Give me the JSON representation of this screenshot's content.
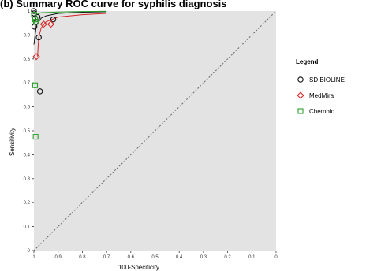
{
  "chart_data": {
    "type": "scatter",
    "title": "(b) Summary ROC curve for syphilis diagnosis",
    "xlabel": "100-Specificity",
    "ylabel": "Sensitivity",
    "x_reversed": true,
    "xlim": [
      1,
      0
    ],
    "ylim": [
      0,
      1
    ],
    "xticks": [
      "1",
      "0.9",
      "0.8",
      "0.7",
      "0.6",
      "0.5",
      "0.4",
      "0.3",
      "0.2",
      "0.1",
      "0"
    ],
    "yticks": [
      "0",
      "0.1",
      "0.2",
      "0.3",
      "0.4",
      "0.5",
      "0.6",
      "0.7",
      "0.8",
      "0.9",
      "1"
    ],
    "grid": false,
    "background": "#e3e3e3",
    "diagonal_reference": true,
    "legend": {
      "title": "Legend",
      "placement": "right",
      "entries": [
        {
          "label": "SD BIOLINE",
          "marker": "circle",
          "color": "#111111"
        },
        {
          "label": "MedMira",
          "marker": "diamond",
          "color": "#d62728"
        },
        {
          "label": "Chembio",
          "marker": "square",
          "color": "#2ca02c"
        }
      ]
    },
    "series": [
      {
        "name": "SD BIOLINE",
        "marker": "circle",
        "color": "#111111",
        "points": [
          {
            "x": 1.0,
            "y": 1.0
          },
          {
            "x": 0.999,
            "y": 0.99
          },
          {
            "x": 0.995,
            "y": 0.97
          },
          {
            "x": 0.998,
            "y": 0.935
          },
          {
            "x": 0.985,
            "y": 0.975
          },
          {
            "x": 0.98,
            "y": 0.89
          },
          {
            "x": 0.92,
            "y": 0.965
          },
          {
            "x": 0.975,
            "y": 0.665
          }
        ],
        "curve": [
          [
            1.0,
            0.86
          ],
          [
            0.99,
            0.94
          ],
          [
            0.97,
            0.97
          ],
          [
            0.95,
            0.98
          ],
          [
            0.9,
            0.99
          ],
          [
            0.8,
            0.995
          ],
          [
            0.7,
            0.997
          ]
        ]
      },
      {
        "name": "MedMira",
        "marker": "diamond",
        "color": "#d62728",
        "points": [
          {
            "x": 0.99,
            "y": 0.81
          },
          {
            "x": 0.96,
            "y": 0.945
          },
          {
            "x": 0.93,
            "y": 0.945
          }
        ],
        "curve": [
          [
            0.985,
            0.81
          ],
          [
            0.98,
            0.89
          ],
          [
            0.97,
            0.93
          ],
          [
            0.95,
            0.955
          ],
          [
            0.9,
            0.975
          ],
          [
            0.8,
            0.985
          ],
          [
            0.7,
            0.99
          ]
        ]
      },
      {
        "name": "Chembio",
        "marker": "square",
        "color": "#2ca02c",
        "points": [
          {
            "x": 1.0,
            "y": 0.985
          },
          {
            "x": 0.995,
            "y": 0.965
          },
          {
            "x": 0.992,
            "y": 0.955
          },
          {
            "x": 0.995,
            "y": 0.69
          },
          {
            "x": 0.993,
            "y": 0.475
          }
        ],
        "curve": [
          [
            1.0,
            0.945
          ],
          [
            0.99,
            0.985
          ],
          [
            0.97,
            0.993
          ],
          [
            0.9,
            0.996
          ],
          [
            0.8,
            0.998
          ],
          [
            0.7,
            0.999
          ]
        ]
      }
    ]
  }
}
